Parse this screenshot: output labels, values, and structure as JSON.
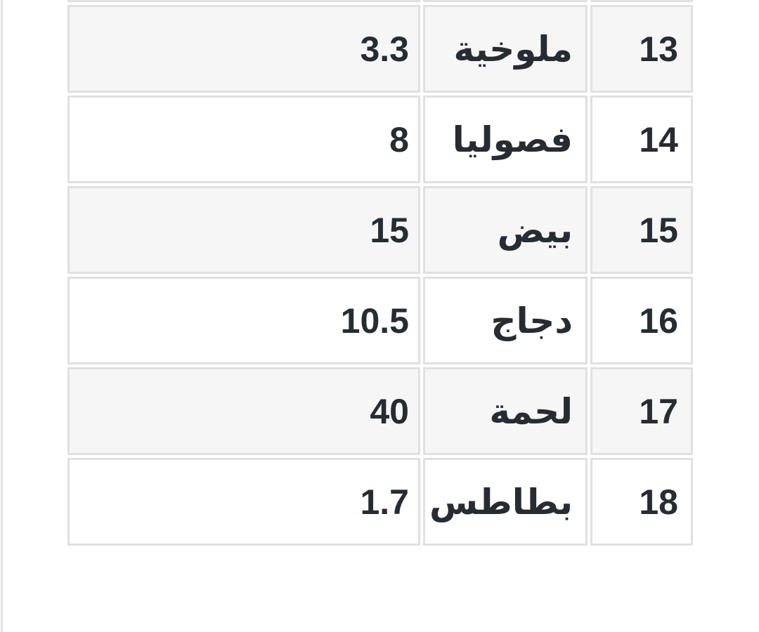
{
  "page": {
    "background_color": "#ffffff",
    "stripe_color": "#f6f6f7",
    "border_color": "#e0e0e1",
    "text_color": "#272c33"
  },
  "table": {
    "direction": "rtl",
    "columns": [
      "row_number",
      "item_name",
      "value"
    ],
    "rows": [
      {
        "num": "13",
        "name": "ملوخية",
        "value": "3.3",
        "striped": true
      },
      {
        "num": "14",
        "name": "فصوليا",
        "value": "8",
        "striped": false
      },
      {
        "num": "15",
        "name": "بيض",
        "value": "15",
        "striped": true
      },
      {
        "num": "16",
        "name": "دجاج",
        "value": "10.5",
        "striped": false
      },
      {
        "num": "17",
        "name": "لحمة",
        "value": "40",
        "striped": true
      },
      {
        "num": "18",
        "name": "بطاطس",
        "value": "1.7",
        "striped": false
      }
    ]
  }
}
